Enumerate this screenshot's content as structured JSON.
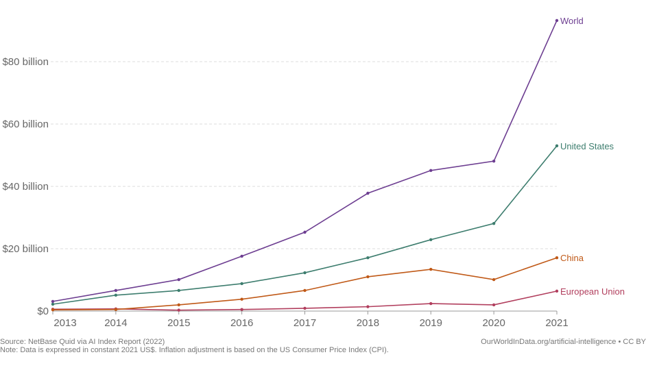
{
  "chart_data": {
    "type": "line",
    "title": "",
    "xlabel": "",
    "ylabel": "",
    "x": [
      2013,
      2014,
      2015,
      2016,
      2017,
      2018,
      2019,
      2020,
      2021
    ],
    "xlim": [
      2013,
      2021
    ],
    "ylim": [
      0,
      95
    ],
    "yticks": [
      0,
      20,
      40,
      60,
      80
    ],
    "ytick_labels": [
      "$0",
      "$20 billion",
      "$40 billion",
      "$60 billion",
      "$80 billion"
    ],
    "xtick_labels": [
      "2013",
      "2014",
      "2015",
      "2016",
      "2017",
      "2018",
      "2019",
      "2020",
      "2021"
    ],
    "grid": "horizontal-dashed",
    "legend": "inline-right",
    "unit": "billion US$ (constant 2021)",
    "series": [
      {
        "name": "World",
        "color": "#6d3e91",
        "values": [
          3.1,
          6.6,
          10.1,
          17.6,
          25.3,
          37.8,
          45.1,
          48.1,
          93.2
        ]
      },
      {
        "name": "United States",
        "color": "#3d7d6e",
        "values": [
          2.2,
          5.1,
          6.6,
          8.8,
          12.3,
          17.1,
          22.9,
          28.1,
          53.0
        ]
      },
      {
        "name": "China",
        "color": "#c05917",
        "values": [
          0.4,
          0.5,
          2.0,
          3.8,
          6.6,
          11.0,
          13.4,
          10.1,
          17.1
        ]
      },
      {
        "name": "European Union",
        "color": "#b13e5d",
        "values": [
          0.6,
          0.7,
          0.3,
          0.5,
          0.9,
          1.4,
          2.4,
          2.0,
          6.4
        ]
      }
    ]
  },
  "footer": {
    "source": "Source: NetBase Quid via AI Index Report (2022)",
    "note": "Note: Data is expressed in constant 2021 US$. Inflation adjustment is based on the US Consumer Price Index (CPI).",
    "credit": "OurWorldInData.org/artificial-intelligence • CC BY"
  }
}
